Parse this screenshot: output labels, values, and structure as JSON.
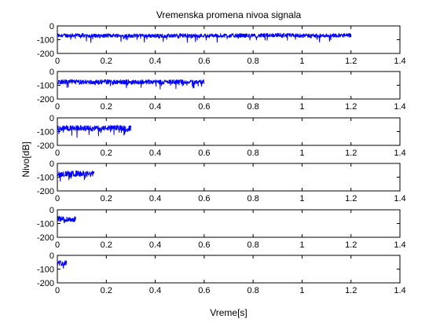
{
  "figure": {
    "title": "Vremenska promena nivoa signala",
    "xlabel": "Vreme[s]",
    "ylabel": "Nivo[dB]"
  },
  "chart_data": {
    "type": "line",
    "title": "Vremenska promena nivoa signala",
    "xlabel": "Vreme[s]",
    "ylabel": "Nivo[dB]",
    "xlim": [
      0,
      1.4
    ],
    "ylim": [
      -200,
      0
    ],
    "xticks": [
      0,
      0.2,
      0.4,
      0.6,
      0.8,
      1,
      1.2,
      1.4
    ],
    "xtick_labels": [
      "0",
      "0.2",
      "0.4",
      "0.6",
      "0.8",
      "1",
      "1.2",
      "1.4"
    ],
    "yticks": [
      0,
      -100,
      -200
    ],
    "ytick_labels": [
      "0",
      "-100",
      "-200"
    ],
    "grid": false,
    "line_color": "#0000ff",
    "panels": [
      {
        "x_end": 1.2,
        "level_db": -70,
        "noise_db": 28
      },
      {
        "x_end": 0.6,
        "level_db": -75,
        "noise_db": 32
      },
      {
        "x_end": 0.3,
        "level_db": -75,
        "noise_db": 38
      },
      {
        "x_end": 0.15,
        "level_db": -75,
        "noise_db": 42
      },
      {
        "x_end": 0.075,
        "level_db": -65,
        "noise_db": 40
      },
      {
        "x_end": 0.0375,
        "level_db": -55,
        "noise_db": 38
      }
    ]
  }
}
